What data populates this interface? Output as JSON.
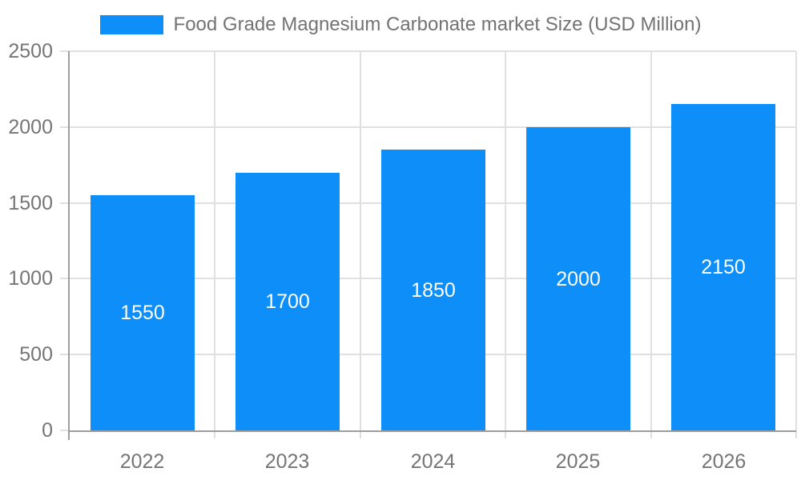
{
  "chart_data": {
    "type": "bar",
    "title": "",
    "legend": "Food Grade Magnesium Carbonate market Size (USD Million)",
    "legend_position": "top",
    "categories": [
      "2022",
      "2023",
      "2024",
      "2025",
      "2026"
    ],
    "values": [
      1550,
      1700,
      1850,
      2000,
      2150
    ],
    "series": [
      {
        "name": "Food Grade Magnesium Carbonate market Size (USD Million)",
        "values": [
          1550,
          1700,
          1850,
          2000,
          2150
        ]
      }
    ],
    "value_labels_visible": true,
    "xlabel": "",
    "ylabel": "",
    "ylim": [
      0,
      2500
    ],
    "yticks": [
      0,
      500,
      1000,
      1500,
      2000,
      2500
    ],
    "grid": true,
    "colors": {
      "bar": "#0d8ef8",
      "axis_line": "#9e9e9e",
      "gridline": "#e0e0e0",
      "tick_label": "#757575",
      "legend_text": "#737373",
      "value_label": "#ffffff",
      "background": "#ffffff"
    }
  }
}
